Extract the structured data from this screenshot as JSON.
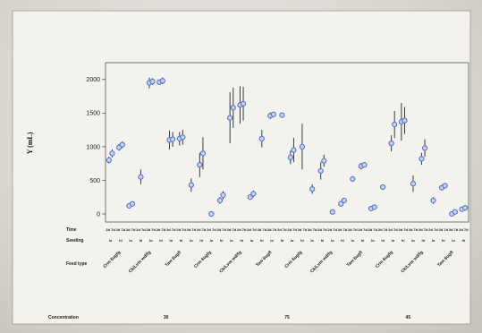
{
  "chart_data": {
    "type": "scatter",
    "ylabel": "Y (mL)",
    "ylim": [
      -120,
      2250
    ],
    "yticks": [
      0,
      500,
      1000,
      1500,
      2000
    ],
    "row_labels": [
      "Time",
      "Seeding",
      "Feed type",
      "Concentration"
    ],
    "time_values": [
      "2d",
      "7d"
    ],
    "seeding_values": [
      "lo",
      "hi"
    ],
    "feed_types": [
      "Crm 6ugfg",
      "Ck/Lvm wd/fg",
      "Taw 6ugfl"
    ],
    "concentrations": [
      "30",
      "75",
      "45"
    ],
    "groups": [
      {
        "conc": "30",
        "feed": "Crm 6ugfg",
        "seeding": "lo",
        "points": [
          {
            "y": 800,
            "err": 50
          },
          {
            "y": 900,
            "err": 60
          }
        ]
      },
      {
        "conc": "30",
        "feed": "Crm 6ugfg",
        "seeding": "hi",
        "points": [
          {
            "y": 990,
            "err": 50
          },
          {
            "y": 1030,
            "err": 50
          }
        ]
      },
      {
        "conc": "30",
        "feed": "Ck/Lvm wd/fg",
        "seeding": "lo",
        "points": [
          {
            "y": 120,
            "err": 40
          },
          {
            "y": 150,
            "err": 30
          }
        ]
      },
      {
        "conc": "30",
        "feed": "Ck/Lvm wd/fg",
        "seeding": "hi",
        "points": [
          {
            "y": 550,
            "err": 110
          }
        ]
      },
      {
        "conc": "30",
        "feed": "Taw 6ugfl",
        "seeding": "lo",
        "points": [
          {
            "y": 1950,
            "err": 80
          },
          {
            "y": 1970,
            "err": 50
          }
        ]
      },
      {
        "conc": "30",
        "feed": "Taw 6ugfl",
        "seeding": "hi",
        "points": [
          {
            "y": 1960,
            "err": 40
          },
          {
            "y": 1980,
            "err": 50
          }
        ]
      },
      {
        "conc": "30",
        "feed": "Taw 6ugfl",
        "seeding": "lo",
        "points": [
          {
            "y": 1100,
            "err": 140
          },
          {
            "y": 1110,
            "err": 110
          }
        ]
      },
      {
        "conc": "30",
        "feed": "Taw 6ugfl",
        "seeding": "hi",
        "points": [
          {
            "y": 1120,
            "err": 100
          },
          {
            "y": 1140,
            "err": 110
          }
        ]
      },
      {
        "conc": "75",
        "feed": "Crm 6ugfg",
        "seeding": "lo",
        "points": [
          {
            "y": 430,
            "err": 100
          }
        ]
      },
      {
        "conc": "75",
        "feed": "Crm 6ugfg",
        "seeding": "hi",
        "points": [
          {
            "y": 730,
            "err": 180
          },
          {
            "y": 900,
            "err": 240
          }
        ]
      },
      {
        "conc": "75",
        "feed": "Ck/Lvm wd/fg",
        "seeding": "lo",
        "points": [
          {
            "y": 0,
            "err": 30
          }
        ]
      },
      {
        "conc": "75",
        "feed": "Ck/Lvm wd/fg",
        "seeding": "hi",
        "points": [
          {
            "y": 200,
            "err": 50
          },
          {
            "y": 280,
            "err": 60
          }
        ]
      },
      {
        "conc": "75",
        "feed": "Taw 6ugfl",
        "seeding": "lo",
        "points": [
          {
            "y": 1430,
            "err": 380
          },
          {
            "y": 1580,
            "err": 300
          }
        ]
      },
      {
        "conc": "75",
        "feed": "Taw 6ugfl",
        "seeding": "hi",
        "points": [
          {
            "y": 1620,
            "err": 280
          },
          {
            "y": 1640,
            "err": 250
          }
        ]
      },
      {
        "conc": "75",
        "feed": "Ck/Lvm wd/fg",
        "seeding": "lo",
        "points": [
          {
            "y": 250,
            "err": 40
          },
          {
            "y": 300,
            "err": 50
          }
        ]
      },
      {
        "conc": "75",
        "feed": "Ck/Lvm wd/fg",
        "seeding": "hi",
        "points": [
          {
            "y": 1120,
            "err": 130
          }
        ]
      },
      {
        "conc": "75",
        "feed": "Taw 6ugfl",
        "seeding": "lo",
        "points": [
          {
            "y": 1460,
            "err": 50
          },
          {
            "y": 1480,
            "err": 40
          }
        ]
      },
      {
        "conc": "75",
        "feed": "Taw 6ugfl",
        "seeding": "hi",
        "points": [
          {
            "y": 1470,
            "err": 40
          }
        ]
      },
      {
        "conc": "75",
        "feed": "Taw 6ugfl",
        "seeding": "lo",
        "points": [
          {
            "y": 840,
            "err": 100
          },
          {
            "y": 950,
            "err": 180
          }
        ]
      },
      {
        "conc": "75",
        "feed": "Taw 6ugfl",
        "seeding": "hi",
        "points": [
          {
            "y": 1000,
            "err": 340
          }
        ]
      },
      {
        "conc": "45",
        "feed": "Crm 6ugfg",
        "seeding": "lo",
        "points": [
          {
            "y": 370,
            "err": 70
          }
        ]
      },
      {
        "conc": "45",
        "feed": "Crm 6ugfg",
        "seeding": "hi",
        "points": [
          {
            "y": 640,
            "err": 130
          },
          {
            "y": 790,
            "err": 90
          }
        ]
      },
      {
        "conc": "45",
        "feed": "Ck/Lvm wd/fg",
        "seeding": "lo",
        "points": [
          {
            "y": 30,
            "err": 30
          }
        ]
      },
      {
        "conc": "45",
        "feed": "Ck/Lvm wd/fg",
        "seeding": "hi",
        "points": [
          {
            "y": 150,
            "err": 40
          },
          {
            "y": 200,
            "err": 40
          }
        ]
      },
      {
        "conc": "45",
        "feed": "Taw 6ugfl",
        "seeding": "lo",
        "points": [
          {
            "y": 520,
            "err": 40
          }
        ]
      },
      {
        "conc": "45",
        "feed": "Taw 6ugfl",
        "seeding": "hi",
        "points": [
          {
            "y": 710,
            "err": 50
          },
          {
            "y": 730,
            "err": 40
          }
        ]
      },
      {
        "conc": "45",
        "feed": "Crm 6ugfg",
        "seeding": "lo",
        "points": [
          {
            "y": 80,
            "err": 30
          },
          {
            "y": 100,
            "err": 30
          }
        ]
      },
      {
        "conc": "45",
        "feed": "Crm 6ugfg",
        "seeding": "hi",
        "points": [
          {
            "y": 400,
            "err": 40
          }
        ]
      },
      {
        "conc": "45",
        "feed": "Ck/Lvm wd/fg",
        "seeding": "lo",
        "points": [
          {
            "y": 1050,
            "err": 120
          },
          {
            "y": 1330,
            "err": 200
          }
        ]
      },
      {
        "conc": "45",
        "feed": "Ck/Lvm wd/fg",
        "seeding": "hi",
        "points": [
          {
            "y": 1370,
            "err": 280
          },
          {
            "y": 1390,
            "err": 200
          }
        ]
      },
      {
        "conc": "45",
        "feed": "Taw 6ugfl",
        "seeding": "lo",
        "points": [
          {
            "y": 450,
            "err": 120
          }
        ]
      },
      {
        "conc": "45",
        "feed": "Taw 6ugfl",
        "seeding": "hi",
        "points": [
          {
            "y": 820,
            "err": 90
          },
          {
            "y": 980,
            "err": 130
          }
        ]
      },
      {
        "conc": "45",
        "feed": "Taw 6ugfl",
        "seeding": "lo",
        "points": [
          {
            "y": 200,
            "err": 50
          }
        ]
      },
      {
        "conc": "45",
        "feed": "Taw 6ugfl",
        "seeding": "hi",
        "points": [
          {
            "y": 390,
            "err": 40
          },
          {
            "y": 420,
            "err": 40
          }
        ]
      },
      {
        "conc": "45",
        "feed": "Taw 6ugfl",
        "seeding": "lo",
        "points": [
          {
            "y": 0,
            "err": 30
          },
          {
            "y": 30,
            "err": 30
          }
        ]
      },
      {
        "conc": "45",
        "feed": "Taw 6ugfl",
        "seeding": "hi",
        "points": [
          {
            "y": 70,
            "err": 30
          },
          {
            "y": 90,
            "err": 30
          }
        ]
      }
    ],
    "grid": false,
    "colors": {
      "marker": "#4e6fc0",
      "marker_fill": "#c6d2ee",
      "errorbar": "#3a3a3a",
      "frame": "#555555"
    }
  }
}
